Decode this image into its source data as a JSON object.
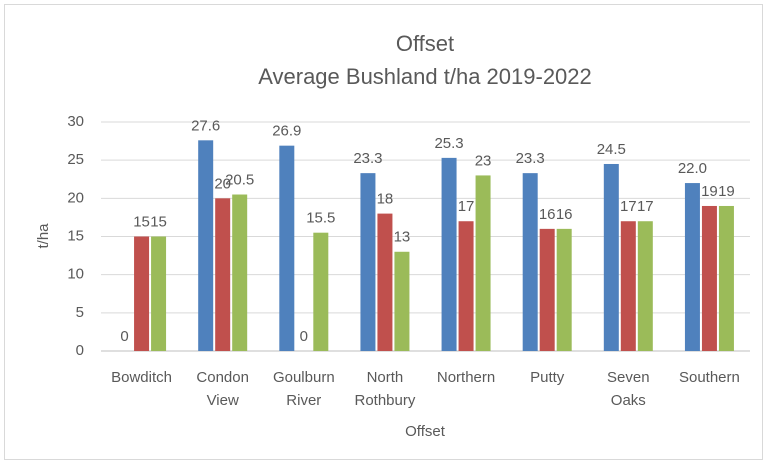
{
  "chart_data": {
    "type": "bar",
    "title": "Offset",
    "subtitle": "Average Bushland t/ha 2019-2022",
    "x_label": "Offset",
    "y_label": "t/ha",
    "categories": [
      "Bowditch",
      "Condon View",
      "Goulburn River",
      "North Rothbury",
      "Northern",
      "Putty",
      "Seven Oaks",
      "Southern"
    ],
    "series": [
      {
        "color": "#4f81bd",
        "values": [
          0,
          27.6,
          26.9,
          23.3,
          25.3,
          23.3,
          24.5,
          22
        ],
        "value_labels": [
          "0",
          "27.6",
          "26.9",
          "23.3",
          "25.3",
          "23.3",
          "24.5",
          "22.0"
        ]
      },
      {
        "color": "#c0504d",
        "values": [
          15,
          20,
          0,
          18,
          17,
          16,
          17,
          19
        ]
      },
      {
        "color": "#9bbb59",
        "values": [
          15,
          20.5,
          15.5,
          13,
          23,
          16,
          17,
          19
        ]
      }
    ],
    "ylim": [
      0,
      30
    ],
    "yticks": [
      0,
      5,
      10,
      15,
      20,
      25,
      30
    ],
    "grid": true
  }
}
